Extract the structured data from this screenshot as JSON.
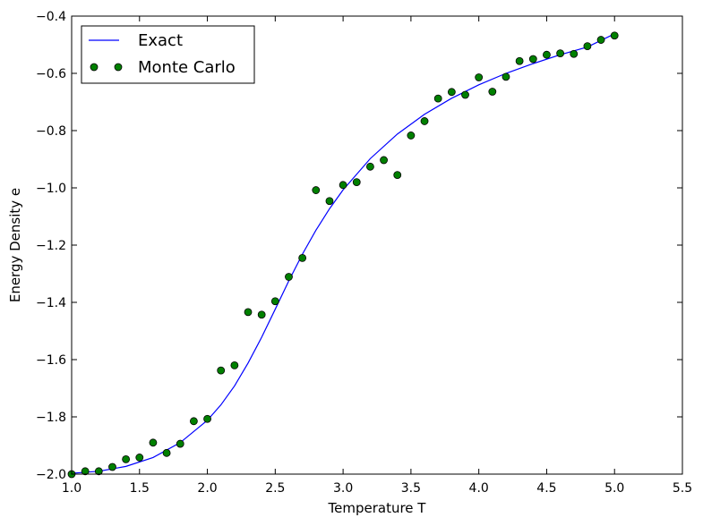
{
  "chart_data": {
    "type": "line",
    "title": "",
    "xlabel": "Temperature T",
    "ylabel": "Energy Density e",
    "xlim": [
      1.0,
      5.5
    ],
    "ylim": [
      -2.0,
      -0.4
    ],
    "xticks": [
      1.0,
      1.5,
      2.0,
      2.5,
      3.0,
      3.5,
      4.0,
      4.5,
      5.0,
      5.5
    ],
    "xtick_labels": [
      "1.0",
      "1.5",
      "2.0",
      "2.5",
      "3.0",
      "3.5",
      "4.0",
      "4.5",
      "5.0",
      "5.5"
    ],
    "yticks": [
      -2.0,
      -1.8,
      -1.6,
      -1.4,
      -1.2,
      -1.0,
      -0.8,
      -0.6,
      -0.4
    ],
    "ytick_labels": [
      "−2.0",
      "−1.8",
      "−1.6",
      "−1.4",
      "−1.2",
      "−1.0",
      "−0.8",
      "−0.6",
      "−0.4"
    ],
    "grid": false,
    "legend": {
      "placement": "top-left",
      "entries": [
        "Exact",
        "Monte Carlo"
      ]
    },
    "series": [
      {
        "name": "Exact",
        "style": "line",
        "color": "#0000ff",
        "x": [
          1.0,
          1.2,
          1.4,
          1.6,
          1.8,
          2.0,
          2.1,
          2.2,
          2.3,
          2.4,
          2.5,
          2.6,
          2.7,
          2.8,
          2.9,
          3.0,
          3.2,
          3.4,
          3.6,
          3.8,
          4.0,
          4.2,
          4.4,
          4.6,
          4.8,
          5.0
        ],
        "y": [
          -1.997,
          -1.99,
          -1.973,
          -1.942,
          -1.89,
          -1.812,
          -1.758,
          -1.692,
          -1.612,
          -1.522,
          -1.424,
          -1.325,
          -1.232,
          -1.148,
          -1.073,
          -1.007,
          -0.898,
          -0.812,
          -0.743,
          -0.687,
          -0.64,
          -0.6,
          -0.566,
          -0.535,
          -0.508,
          -0.462
        ]
      },
      {
        "name": "Monte Carlo",
        "style": "markers",
        "color": "#008000",
        "x": [
          1.0,
          1.1,
          1.2,
          1.3,
          1.4,
          1.5,
          1.6,
          1.7,
          1.8,
          1.9,
          2.0,
          2.1,
          2.2,
          2.3,
          2.4,
          2.5,
          2.6,
          2.7,
          2.8,
          2.9,
          3.0,
          3.1,
          3.2,
          3.3,
          3.4,
          3.5,
          3.6,
          3.7,
          3.8,
          3.9,
          4.0,
          4.1,
          4.2,
          4.3,
          4.4,
          4.5,
          4.6,
          4.7,
          4.8,
          4.9,
          5.0
        ],
        "y": [
          -2.0,
          -1.99,
          -1.99,
          -1.975,
          -1.948,
          -1.942,
          -1.89,
          -1.926,
          -1.894,
          -1.815,
          -1.807,
          -1.638,
          -1.62,
          -1.434,
          -1.443,
          -1.396,
          -1.311,
          -1.245,
          -1.008,
          -1.046,
          -0.99,
          -0.98,
          -0.926,
          -0.903,
          -0.955,
          -0.817,
          -0.767,
          -0.688,
          -0.665,
          -0.675,
          -0.614,
          -0.664,
          -0.612,
          -0.557,
          -0.55,
          -0.535,
          -0.53,
          -0.532,
          -0.505,
          -0.483,
          -0.468
        ]
      }
    ]
  }
}
